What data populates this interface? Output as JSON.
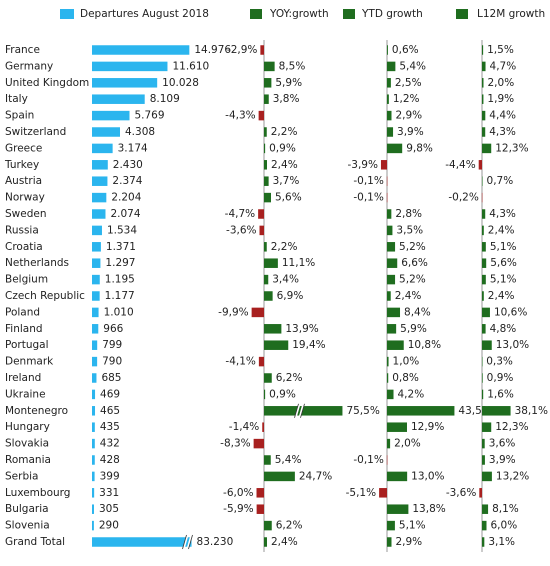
{
  "chart_data": {
    "type": "bar",
    "categories": [
      "France",
      "Germany",
      "United Kingdom",
      "Italy",
      "Spain",
      "Switzerland",
      "Greece",
      "Turkey",
      "Austria",
      "Norway",
      "Sweden",
      "Russia",
      "Croatia",
      "Netherlands",
      "Belgium",
      "Czech Republic",
      "Poland",
      "Finland",
      "Portugal",
      "Denmark",
      "Ireland",
      "Ukraine",
      "Montenegro",
      "Hungary",
      "Slovakia",
      "Romania",
      "Serbia",
      "Luxembourg",
      "Bulgaria",
      "Slovenia",
      "Grand Total"
    ],
    "negative_color": "#a8201f",
    "series": [
      {
        "name": "Departures August 2018",
        "color": "#2bb5ee",
        "values": [
          14976,
          11610,
          10028,
          8109,
          5769,
          4308,
          3174,
          2430,
          2374,
          2204,
          2074,
          1534,
          1371,
          1297,
          1195,
          1177,
          1010,
          966,
          799,
          790,
          685,
          469,
          465,
          435,
          432,
          428,
          399,
          331,
          305,
          290,
          83230
        ],
        "value_labels": [
          "14.976",
          "11.610",
          "10.028",
          "8.109",
          "5.769",
          "4.308",
          "3.174",
          "2.430",
          "2.374",
          "2.204",
          "2.074",
          "1.534",
          "1.371",
          "1.297",
          "1.195",
          "1.177",
          "1.010",
          "966",
          "799",
          "790",
          "685",
          "469",
          "465",
          "435",
          "432",
          "428",
          "399",
          "331",
          "305",
          "290",
          "83.230"
        ]
      },
      {
        "name": "YOY:growth",
        "color": "#1f6d1f",
        "values": [
          -2.9,
          8.5,
          5.9,
          3.8,
          -4.3,
          2.2,
          0.9,
          2.4,
          3.7,
          5.6,
          -4.7,
          -3.6,
          2.2,
          11.1,
          3.4,
          6.9,
          -9.9,
          13.9,
          19.4,
          -4.1,
          6.2,
          0.9,
          75.5,
          -1.4,
          -8.3,
          5.4,
          24.7,
          -6.0,
          -5.9,
          6.2,
          2.4
        ],
        "value_labels": [
          "-2,9%",
          "8,5%",
          "5,9%",
          "3,8%",
          "-4,3%",
          "2,2%",
          "0,9%",
          "2,4%",
          "3,7%",
          "5,6%",
          "-4,7%",
          "-3,6%",
          "2,2%",
          "11,1%",
          "3,4%",
          "6,9%",
          "-9,9%",
          "13,9%",
          "19,4%",
          "-4,1%",
          "6,2%",
          "0,9%",
          "75,5%",
          "-1,4%",
          "-8,3%",
          "5,4%",
          "24,7%",
          "-6,0%",
          "-5,9%",
          "6,2%",
          "2,4%"
        ]
      },
      {
        "name": "YTD growth",
        "color": "#1f6d1f",
        "values": [
          0.6,
          5.4,
          2.5,
          1.2,
          2.9,
          3.9,
          9.8,
          -3.9,
          -0.1,
          -0.1,
          2.8,
          3.5,
          5.2,
          6.6,
          5.2,
          2.4,
          8.4,
          5.9,
          10.8,
          1.0,
          0.8,
          4.2,
          43.5,
          12.9,
          2.0,
          -0.1,
          13.0,
          -5.1,
          13.8,
          5.1,
          2.9
        ],
        "value_labels": [
          "0,6%",
          "5,4%",
          "2,5%",
          "1,2%",
          "2,9%",
          "3,9%",
          "9,8%",
          "-3,9%",
          "-0,1%",
          "-0,1%",
          "2,8%",
          "3,5%",
          "5,2%",
          "6,6%",
          "5,2%",
          "2,4%",
          "8,4%",
          "5,9%",
          "10,8%",
          "1,0%",
          "0,8%",
          "4,2%",
          "43,5%",
          "12,9%",
          "2,0%",
          "-0,1%",
          "13,0%",
          "-5,1%",
          "13,8%",
          "5,1%",
          "2,9%"
        ]
      },
      {
        "name": "L12M growth",
        "color": "#1f6d1f",
        "values": [
          1.5,
          4.7,
          2.0,
          1.9,
          4.4,
          4.3,
          12.3,
          -4.4,
          0.7,
          -0.2,
          4.3,
          2.4,
          5.1,
          5.6,
          5.1,
          2.4,
          10.6,
          4.8,
          13.0,
          0.3,
          0.9,
          1.6,
          38.1,
          12.3,
          3.6,
          3.9,
          13.2,
          -3.6,
          8.1,
          6.0,
          3.1
        ],
        "value_labels": [
          "1,5%",
          "4,7%",
          "2,0%",
          "1,9%",
          "4,4%",
          "4,3%",
          "12,3%",
          "-4,4%",
          "0,7%",
          "-0,2%",
          "4,3%",
          "2,4%",
          "5,1%",
          "5,6%",
          "5,1%",
          "2,4%",
          "10,6%",
          "4,8%",
          "13,0%",
          "0,3%",
          "0,9%",
          "1,6%",
          "38,1%",
          "12,3%",
          "3,6%",
          "3,9%",
          "13,2%",
          "-3,6%",
          "8,1%",
          "6,0%",
          "3,1%"
        ]
      }
    ]
  }
}
